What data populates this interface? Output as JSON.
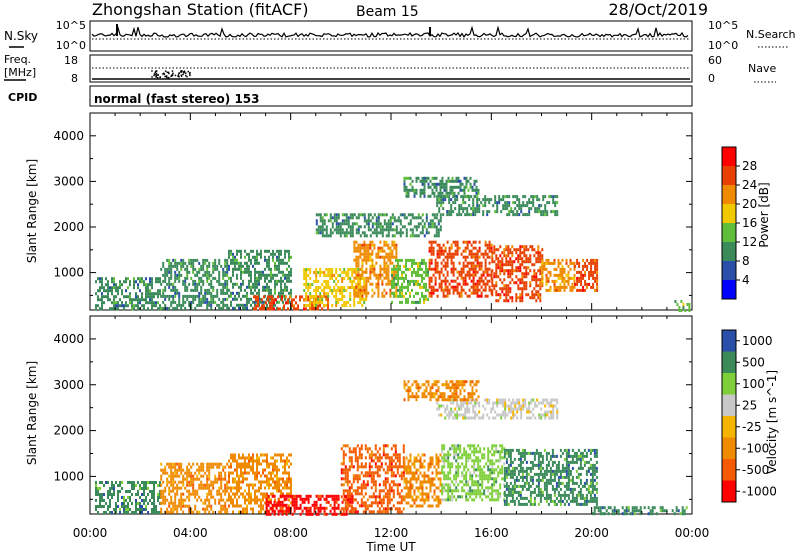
{
  "header": {
    "station": "Zhongshan Station (fitACF)",
    "beam": "Beam 15",
    "date": "28/Oct/2019"
  },
  "noise_panel": {
    "left_label": "N.Sky",
    "right_label": "N.Search",
    "left_ticks": [
      "10^5",
      "10^0"
    ],
    "right_ticks": [
      "10^5",
      "10^0"
    ]
  },
  "freq_panel": {
    "left_label_line1": "Freq.",
    "left_label_line2": "[MHz]",
    "left_ticks": [
      "18",
      "8"
    ],
    "right_label": "Nave",
    "right_ticks": [
      "60",
      "0"
    ]
  },
  "cpid_panel": {
    "label": "CPID",
    "text": "normal (fast stereo) 153"
  },
  "colors": {
    "power_scale": [
      "#0000ff",
      "#2a4fa8",
      "#3a8a5a",
      "#5fbf3a",
      "#f2c800",
      "#f08a00",
      "#e84000",
      "#ff0000"
    ],
    "velocity_scale": [
      "#ff0000",
      "#f55a00",
      "#f08a00",
      "#f5b400",
      "#c8c8c8",
      "#7fcf3a",
      "#3a8a5a",
      "#2a4fa8"
    ]
  },
  "chart_data": [
    {
      "type": "heatmap",
      "title": "",
      "xlabel": "",
      "ylabel": "Slant Range [km]",
      "x_ticks": [
        "00:00",
        "04:00",
        "08:00",
        "12:00",
        "16:00",
        "20:00",
        "00:00"
      ],
      "y_ticks": [
        1000,
        2000,
        3000,
        4000
      ],
      "ylim": [
        180,
        4500
      ],
      "colorbar": {
        "label": "Power [dB]",
        "ticks": [
          4,
          8,
          12,
          16,
          20,
          24,
          28
        ],
        "range": [
          0,
          32
        ]
      },
      "blobs": [
        {
          "t0": 0.2,
          "t1": 2.8,
          "r0": 200,
          "r1": 900,
          "value": 10
        },
        {
          "t0": 2.8,
          "t1": 5.5,
          "r0": 200,
          "r1": 1300,
          "value": 9
        },
        {
          "t0": 5.5,
          "t1": 8.0,
          "r0": 200,
          "r1": 1500,
          "value": 8
        },
        {
          "t0": 6.5,
          "t1": 9.5,
          "r0": 200,
          "r1": 500,
          "value": 24
        },
        {
          "t0": 8.5,
          "t1": 11.0,
          "r0": 250,
          "r1": 1100,
          "value": 16
        },
        {
          "t0": 10.5,
          "t1": 12.2,
          "r0": 500,
          "r1": 1700,
          "value": 20
        },
        {
          "t0": 12.0,
          "t1": 13.5,
          "r0": 350,
          "r1": 1300,
          "value": 14
        },
        {
          "t0": 13.5,
          "t1": 16.0,
          "r0": 500,
          "r1": 1700,
          "value": 25
        },
        {
          "t0": 16.0,
          "t1": 18.0,
          "r0": 400,
          "r1": 1600,
          "value": 24
        },
        {
          "t0": 18.0,
          "t1": 19.3,
          "r0": 600,
          "r1": 1300,
          "value": 22
        },
        {
          "t0": 19.3,
          "t1": 20.2,
          "r0": 600,
          "r1": 1300,
          "value": 27
        },
        {
          "t0": 13.8,
          "t1": 18.6,
          "r0": 2300,
          "r1": 2700,
          "value": 8
        },
        {
          "t0": 12.5,
          "t1": 15.5,
          "r0": 2700,
          "r1": 3100,
          "value": 8
        },
        {
          "t0": 9.0,
          "t1": 14.0,
          "r0": 1800,
          "r1": 2300,
          "value": 8
        },
        {
          "t0": 23.3,
          "t1": 23.9,
          "r0": 200,
          "r1": 400,
          "value": 12
        }
      ]
    },
    {
      "type": "heatmap",
      "title": "",
      "xlabel": "Time UT",
      "ylabel": "Slant Range [km]",
      "x_ticks": [
        "00:00",
        "04:00",
        "08:00",
        "12:00",
        "16:00",
        "20:00",
        "00:00"
      ],
      "y_ticks": [
        1000,
        2000,
        3000,
        4000
      ],
      "ylim": [
        180,
        4500
      ],
      "colorbar": {
        "label": "Velocity [m s^-1]",
        "ticks": [
          "-1000",
          "-500",
          "-100",
          "-25",
          "25",
          "100",
          "500",
          "1000"
        ]
      },
      "blobs": [
        {
          "t0": 0.2,
          "t1": 2.8,
          "r0": 200,
          "r1": 900,
          "value": 500
        },
        {
          "t0": 2.8,
          "t1": 5.5,
          "r0": 200,
          "r1": 1300,
          "value": -100
        },
        {
          "t0": 5.5,
          "t1": 8.0,
          "r0": 200,
          "r1": 1500,
          "value": -100
        },
        {
          "t0": 7.0,
          "t1": 10.5,
          "r0": 200,
          "r1": 600,
          "value": -1000
        },
        {
          "t0": 10.0,
          "t1": 12.5,
          "r0": 250,
          "r1": 1700,
          "value": -500
        },
        {
          "t0": 12.5,
          "t1": 14.0,
          "r0": 350,
          "r1": 1500,
          "value": -100
        },
        {
          "t0": 14.0,
          "t1": 16.5,
          "r0": 500,
          "r1": 1700,
          "value": 100
        },
        {
          "t0": 16.5,
          "t1": 20.2,
          "r0": 400,
          "r1": 1600,
          "value": 500
        },
        {
          "t0": 13.8,
          "t1": 18.6,
          "r0": 2300,
          "r1": 2700,
          "value": 0
        },
        {
          "t0": 12.5,
          "t1": 15.5,
          "r0": 2700,
          "r1": 3100,
          "value": -100
        },
        {
          "t0": 20.0,
          "t1": 23.9,
          "r0": 200,
          "r1": 350,
          "value": 500
        }
      ]
    }
  ]
}
